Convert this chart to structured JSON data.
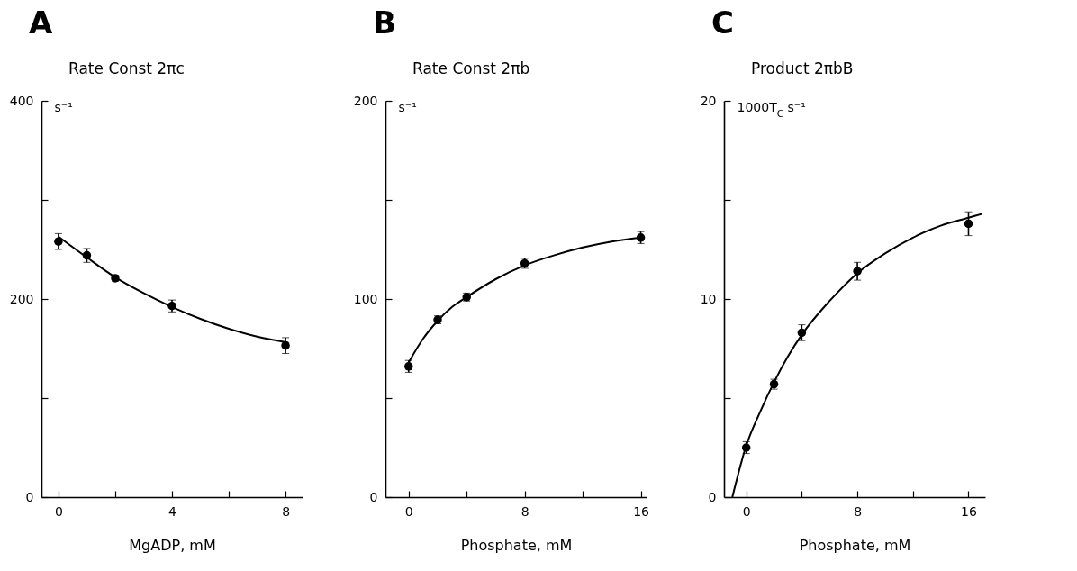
{
  "chart_data": [
    {
      "type": "scatter",
      "title": "A",
      "subtitle": "Rate Const 2πc",
      "xlabel": "MgADP,  mM",
      "ylabel": "s⁻¹",
      "grid": false,
      "xlim": [
        -0.6,
        8.6
      ],
      "ylim": [
        0,
        400
      ],
      "xticks": [
        0,
        {
          "value": 2,
          "label": null
        },
        4,
        {
          "value": 6,
          "label": null
        },
        8
      ],
      "yticks": [
        0,
        {
          "value": 100,
          "label": null
        },
        200,
        {
          "value": 300,
          "label": null
        },
        400
      ],
      "series": [
        {
          "color": "#000000",
          "marker": "circle",
          "x": [
            0,
            1,
            2,
            4,
            8
          ],
          "values": [
            258,
            244,
            221,
            193,
            153
          ],
          "errors": [
            8,
            7,
            3,
            6,
            8
          ]
        },
        {
          "type": "line",
          "color": "#000000",
          "x": [
            0,
            1,
            2,
            3,
            4,
            5,
            6,
            7,
            8.1
          ],
          "values": [
            263,
            242,
            222,
            206,
            192,
            180,
            170,
            162,
            156
          ]
        }
      ]
    },
    {
      "type": "scatter",
      "title": "B",
      "subtitle": "Rate Const 2πb",
      "xlabel": "Phosphate,  mM",
      "ylabel": "s⁻¹",
      "grid": false,
      "xlim": [
        -1.6,
        16.4
      ],
      "ylim": [
        0,
        200
      ],
      "xticks": [
        0,
        {
          "value": 4,
          "label": null
        },
        8,
        {
          "value": 12,
          "label": null
        },
        16
      ],
      "yticks": [
        0,
        {
          "value": 50,
          "label": null
        },
        100,
        {
          "value": 150,
          "label": null
        },
        200
      ],
      "series": [
        {
          "color": "#000000",
          "marker": "circle",
          "x": [
            0,
            2,
            4,
            8,
            16
          ],
          "values": [
            66,
            89.5,
            101,
            118,
            131
          ],
          "errors": [
            3,
            2,
            2,
            2.5,
            3
          ]
        },
        {
          "type": "line",
          "color": "#000000",
          "x": [
            0,
            1,
            2,
            3,
            4,
            6,
            8,
            10,
            12,
            14,
            16
          ],
          "values": [
            68,
            80,
            89,
            96,
            101,
            110,
            117,
            122,
            126,
            129,
            131
          ]
        }
      ]
    },
    {
      "type": "scatter",
      "title": "C",
      "subtitle": "Product  2πbB",
      "xlabel": "Phosphate,  mM",
      "ylabel": "1000T$_{C}$ s⁻¹",
      "grid": false,
      "xlim": [
        -1.6,
        17.2
      ],
      "ylim": [
        0,
        20
      ],
      "xticks": [
        0,
        {
          "value": 4,
          "label": null
        },
        8,
        {
          "value": 12,
          "label": null
        },
        16
      ],
      "yticks": [
        0,
        {
          "value": 5,
          "label": null
        },
        10,
        {
          "value": 15,
          "label": null
        },
        20
      ],
      "series": [
        {
          "color": "#000000",
          "marker": "circle",
          "x": [
            0,
            2,
            4,
            8,
            16
          ],
          "values": [
            2.5,
            5.7,
            8.3,
            11.4,
            13.8
          ],
          "errors": [
            0.3,
            0.25,
            0.4,
            0.45,
            0.6
          ]
        },
        {
          "type": "line",
          "color": "#000000",
          "x": [
            -1,
            0,
            1,
            2,
            3,
            4,
            6,
            8,
            10,
            12,
            14,
            16,
            17
          ],
          "values": [
            0,
            2.6,
            4.3,
            5.8,
            7.1,
            8.2,
            9.9,
            11.3,
            12.3,
            13.1,
            13.7,
            14.1,
            14.3
          ]
        }
      ]
    }
  ]
}
